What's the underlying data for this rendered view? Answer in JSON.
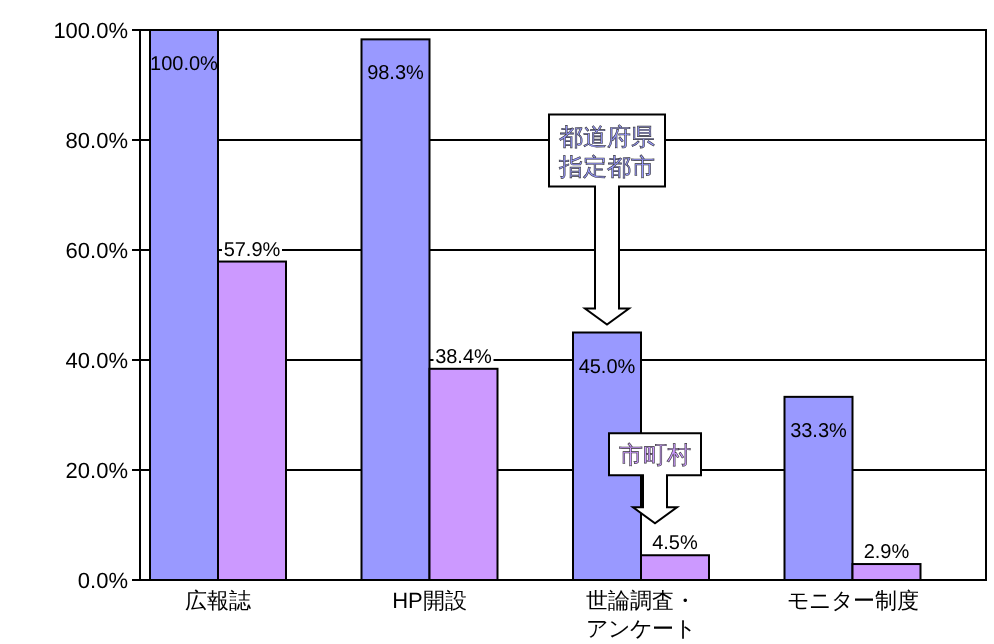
{
  "chart_data": {
    "type": "bar",
    "categories": [
      "広報誌",
      "HP開設",
      "世論調査・アンケート",
      "モニター制度"
    ],
    "series": [
      {
        "name": "都道府県指定都市",
        "color": "#9999ff",
        "values": [
          100.0,
          98.3,
          45.0,
          33.3
        ],
        "value_labels": [
          "100.0%",
          "98.3%",
          "45.0%",
          "33.3%"
        ]
      },
      {
        "name": "市町村",
        "color": "#cc99ff",
        "values": [
          57.9,
          38.4,
          4.5,
          2.9
        ],
        "value_labels": [
          "57.9%",
          "38.4%",
          "4.5%",
          "2.9%"
        ]
      }
    ],
    "ylim": [
      0,
      100
    ],
    "yticks": [
      {
        "value": 0,
        "label": "0.0%"
      },
      {
        "value": 20,
        "label": "20.0%"
      },
      {
        "value": 40,
        "label": "40.0%"
      },
      {
        "value": 60,
        "label": "60.0%"
      },
      {
        "value": 80,
        "label": "80.0%"
      },
      {
        "value": 100,
        "label": "100.0%"
      }
    ],
    "grid": "y"
  }
}
